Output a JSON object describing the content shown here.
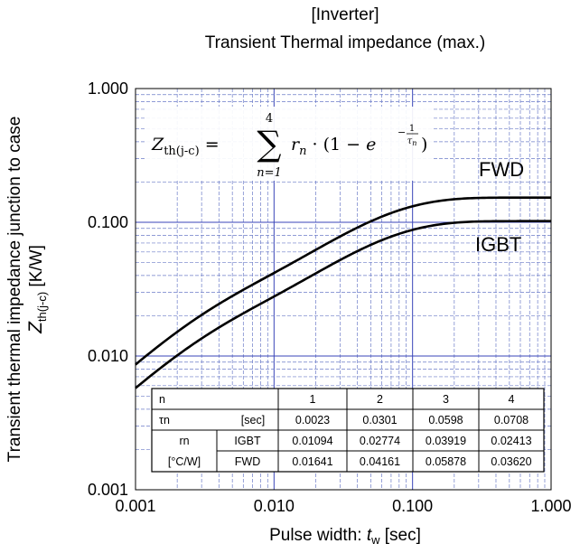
{
  "chart_data": {
    "type": "line",
    "title_lines": [
      "[Inverter]",
      "Transient Thermal impedance (max.)"
    ],
    "xlabel_prefix": "Pulse width: ",
    "xlabel_var": "t",
    "xlabel_sub": "w",
    "xlabel_suffix": " [sec]",
    "ylabel_line1": "Transient thermal impedance junction to case",
    "ylabel_var": "Z",
    "ylabel_sub": "th(j-c)",
    "ylabel_suffix": " [K/W]",
    "x_scale": "log",
    "y_scale": "log",
    "xlim": [
      0.001,
      1.0
    ],
    "ylim": [
      0.001,
      1.0
    ],
    "x_ticks": [
      {
        "value": 0.001,
        "label": "0.001"
      },
      {
        "value": 0.01,
        "label": "0.010"
      },
      {
        "value": 0.1,
        "label": "0.100"
      },
      {
        "value": 1.0,
        "label": "1.000"
      }
    ],
    "y_ticks": [
      {
        "value": 0.001,
        "label": "0.001"
      },
      {
        "value": 0.01,
        "label": "0.010"
      },
      {
        "value": 0.1,
        "label": "0.100"
      },
      {
        "value": 1.0,
        "label": "1.000"
      }
    ],
    "grid": true,
    "formula": {
      "lhs": "Z",
      "lhs_sub": "th(j-c)",
      "sum_top": "4",
      "sum_bottom": "n=1",
      "term": "r",
      "term_sub": "n"
    },
    "series": [
      {
        "name": "FWD",
        "r": [
          0.01641,
          0.04161,
          0.05878,
          0.0362
        ],
        "tau": [
          0.0023,
          0.0301,
          0.0598,
          0.0708
        ]
      },
      {
        "name": "IGBT",
        "r": [
          0.01094,
          0.02774,
          0.03919,
          0.02413
        ],
        "tau": [
          0.0023,
          0.0301,
          0.0598,
          0.0708
        ]
      }
    ],
    "table": {
      "header": [
        "n",
        "1",
        "2",
        "3",
        "4"
      ],
      "tau_row": {
        "label": "τn",
        "unit": "[sec]",
        "values": [
          "0.0023",
          "0.0301",
          "0.0598",
          "0.0708"
        ]
      },
      "r_label": "rn",
      "r_unit": "[°C/W]",
      "igbt_row": {
        "label": "IGBT",
        "values": [
          "0.01094",
          "0.02774",
          "0.03919",
          "0.02413"
        ]
      },
      "fwd_row": {
        "label": "FWD",
        "values": [
          "0.01641",
          "0.04161",
          "0.05878",
          "0.03620"
        ]
      }
    }
  }
}
